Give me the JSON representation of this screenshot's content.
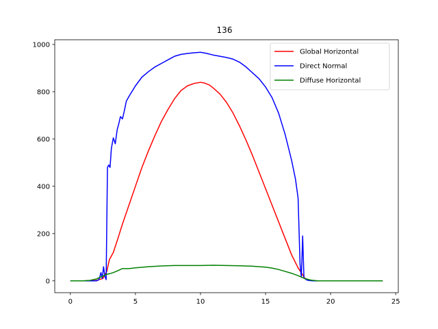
{
  "chart_data": {
    "type": "line",
    "title": "136",
    "xlabel": "",
    "ylabel": "",
    "xlim": [
      -1.2,
      25.2
    ],
    "ylim": [
      -50,
      1020
    ],
    "xticks": [
      0,
      5,
      10,
      15,
      20,
      25
    ],
    "yticks": [
      0,
      200,
      400,
      600,
      800,
      1000
    ],
    "grid": false,
    "legend_position": "top-right",
    "series": [
      {
        "name": "Global Horizontal",
        "color": "#ff0000",
        "x": [
          0,
          1,
          2,
          2.5,
          2.8,
          3.0,
          3.3,
          3.6,
          4.0,
          4.5,
          5,
          5.5,
          6,
          6.5,
          7,
          7.5,
          8,
          8.5,
          9,
          9.5,
          10,
          10.3,
          10.7,
          11,
          11.5,
          12,
          12.5,
          13,
          13.5,
          14,
          14.5,
          15,
          15.5,
          16,
          16.5,
          17,
          17.5,
          17.8,
          18.0,
          18.3,
          18.7,
          19,
          20,
          21,
          22,
          23,
          24
        ],
        "y": [
          0,
          0,
          2,
          10,
          40,
          90,
          120,
          170,
          240,
          320,
          400,
          480,
          550,
          615,
          675,
          725,
          770,
          805,
          825,
          835,
          840,
          837,
          828,
          815,
          790,
          755,
          710,
          655,
          595,
          530,
          460,
          390,
          320,
          250,
          180,
          110,
          55,
          30,
          12,
          4,
          1,
          0,
          0,
          0,
          0,
          0,
          0
        ]
      },
      {
        "name": "Direct Normal",
        "color": "#0000ff",
        "x": [
          0,
          1,
          2,
          2.2,
          2.35,
          2.45,
          2.55,
          2.65,
          2.75,
          2.85,
          2.95,
          3.05,
          3.15,
          3.3,
          3.45,
          3.6,
          3.7,
          3.85,
          4.0,
          4.15,
          4.3,
          4.5,
          5,
          5.5,
          6,
          6.5,
          7,
          7.5,
          8,
          8.5,
          9,
          9.5,
          10,
          10.5,
          11,
          11.5,
          12,
          12.5,
          13,
          13.5,
          14,
          14.5,
          15,
          15.5,
          16,
          16.5,
          17,
          17.3,
          17.5,
          17.65,
          17.75,
          17.85,
          17.95,
          18.05,
          18.2,
          18.4,
          18.7,
          19,
          20,
          21,
          22,
          23,
          24
        ],
        "y": [
          0,
          0,
          0,
          5,
          35,
          10,
          60,
          20,
          5,
          480,
          490,
          480,
          560,
          605,
          580,
          640,
          660,
          695,
          685,
          720,
          760,
          780,
          825,
          862,
          885,
          905,
          920,
          935,
          950,
          958,
          962,
          965,
          967,
          962,
          955,
          950,
          945,
          938,
          925,
          905,
          880,
          855,
          820,
          775,
          710,
          620,
          510,
          430,
          350,
          70,
          15,
          190,
          12,
          8,
          3,
          1,
          0,
          0,
          0,
          0,
          0,
          0,
          0
        ]
      },
      {
        "name": "Diffuse Horizontal",
        "color": "#008000",
        "x": [
          0,
          1,
          1.5,
          2,
          2.5,
          2.8,
          3.0,
          3.3,
          3.6,
          4.0,
          4.5,
          5,
          6,
          7,
          8,
          9,
          10,
          11,
          12,
          13,
          14,
          15,
          15.5,
          16,
          16.5,
          17,
          17.5,
          18,
          18.5,
          19,
          20,
          21,
          22,
          23,
          24
        ],
        "y": [
          0,
          0,
          2,
          8,
          20,
          28,
          30,
          35,
          42,
          52,
          52,
          55,
          60,
          63,
          65,
          65,
          65,
          66,
          65,
          64,
          62,
          58,
          54,
          48,
          40,
          32,
          22,
          10,
          3,
          0,
          0,
          0,
          0,
          0,
          0
        ]
      }
    ]
  }
}
